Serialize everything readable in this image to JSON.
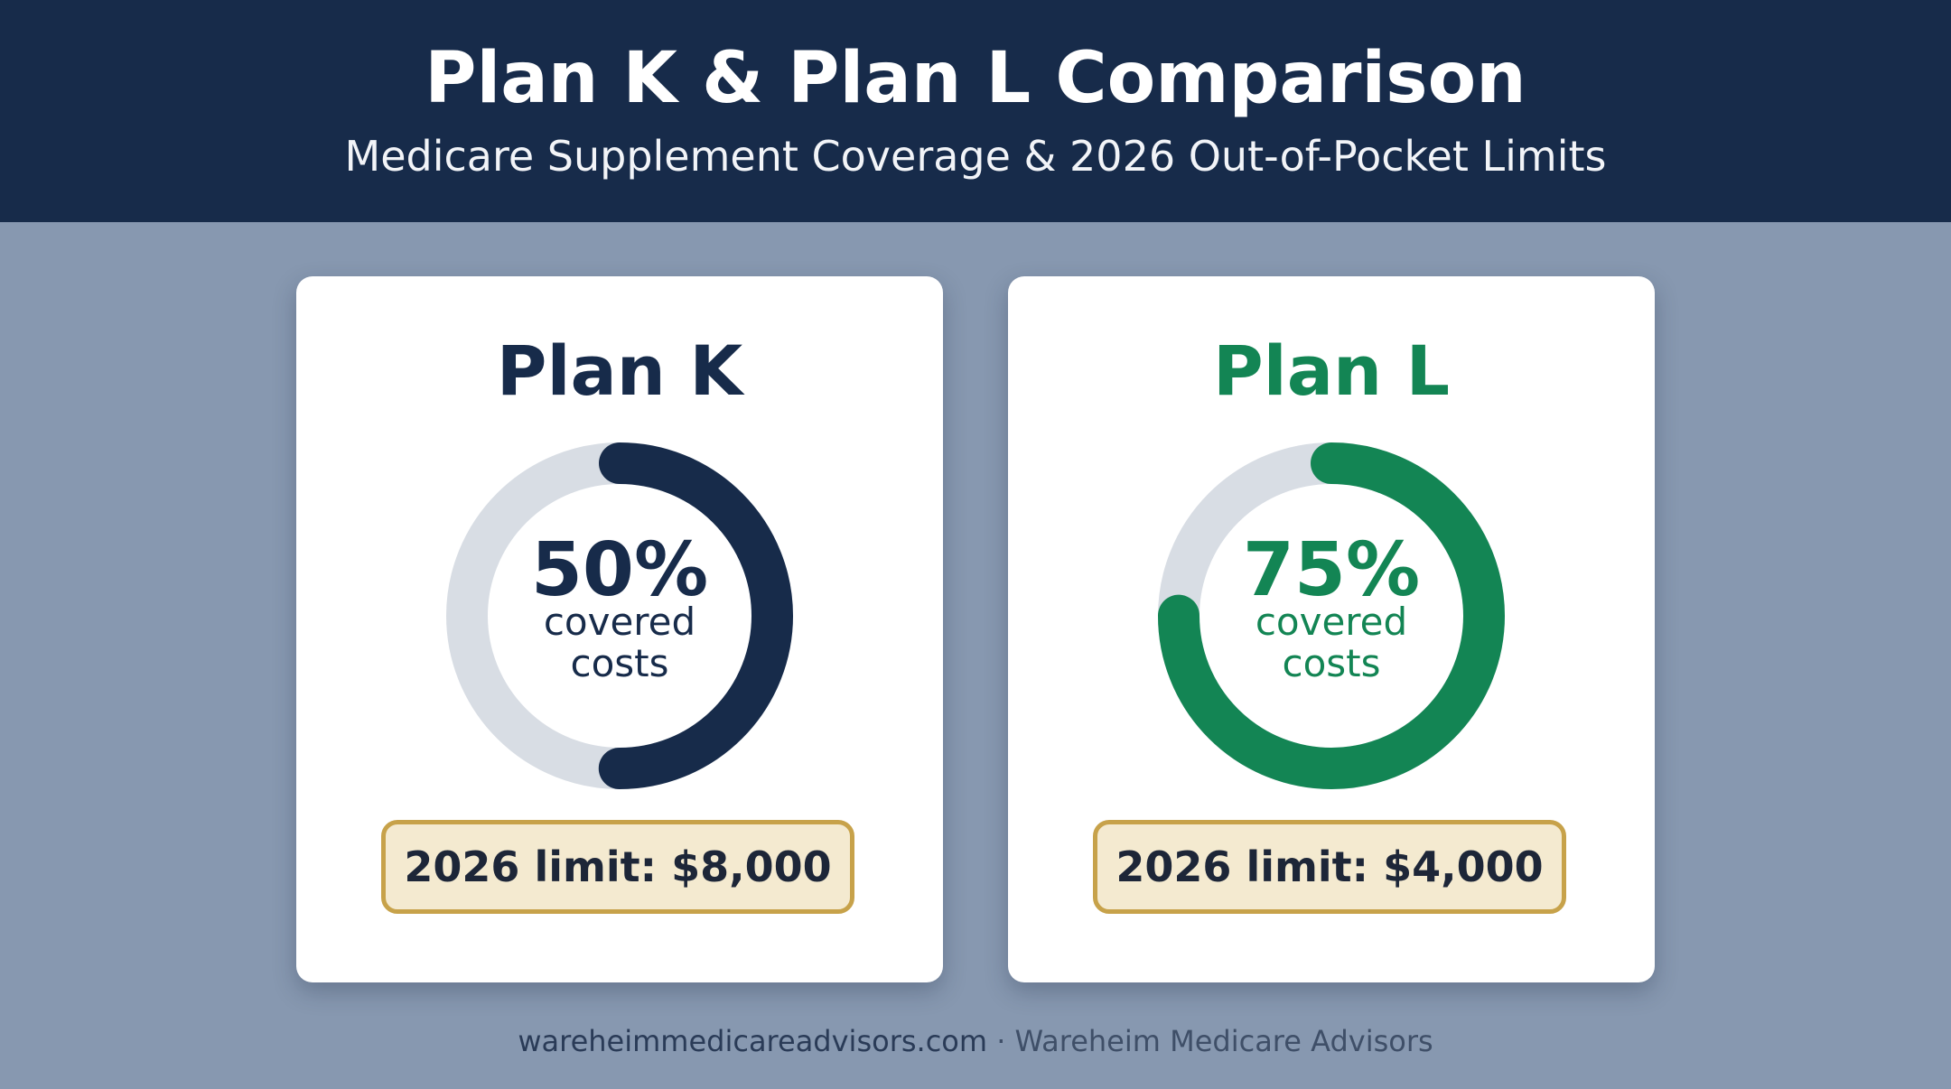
{
  "header": {
    "title": "Plan K & Plan L Comparison",
    "subtitle": "Medicare Supplement Coverage & 2026 Out-of-Pocket Limits"
  },
  "colors": {
    "header_bg": "#172b4a",
    "page_bg": "#8798b0",
    "plan_k_accent": "#172b4a",
    "plan_l_accent": "#138554",
    "track": "#d8dde4",
    "limit_bg": "#f4ead0",
    "limit_border": "#c7a24a"
  },
  "plans": [
    {
      "name": "Plan K",
      "coverage_percent": 50,
      "coverage_label": "50%",
      "coverage_desc_line1": "covered",
      "coverage_desc_line2": "costs",
      "limit_text": "2026 limit: $8,000",
      "accent": "#172b4a"
    },
    {
      "name": "Plan L",
      "coverage_percent": 75,
      "coverage_label": "75%",
      "coverage_desc_line1": "covered",
      "coverage_desc_line2": "costs",
      "limit_text": "2026 limit: $4,000",
      "accent": "#138554"
    }
  ],
  "footer": {
    "website": "wareheimmedicareadvisors.com",
    "separator": "·",
    "organization": "Wareheim Medicare Advisors"
  }
}
